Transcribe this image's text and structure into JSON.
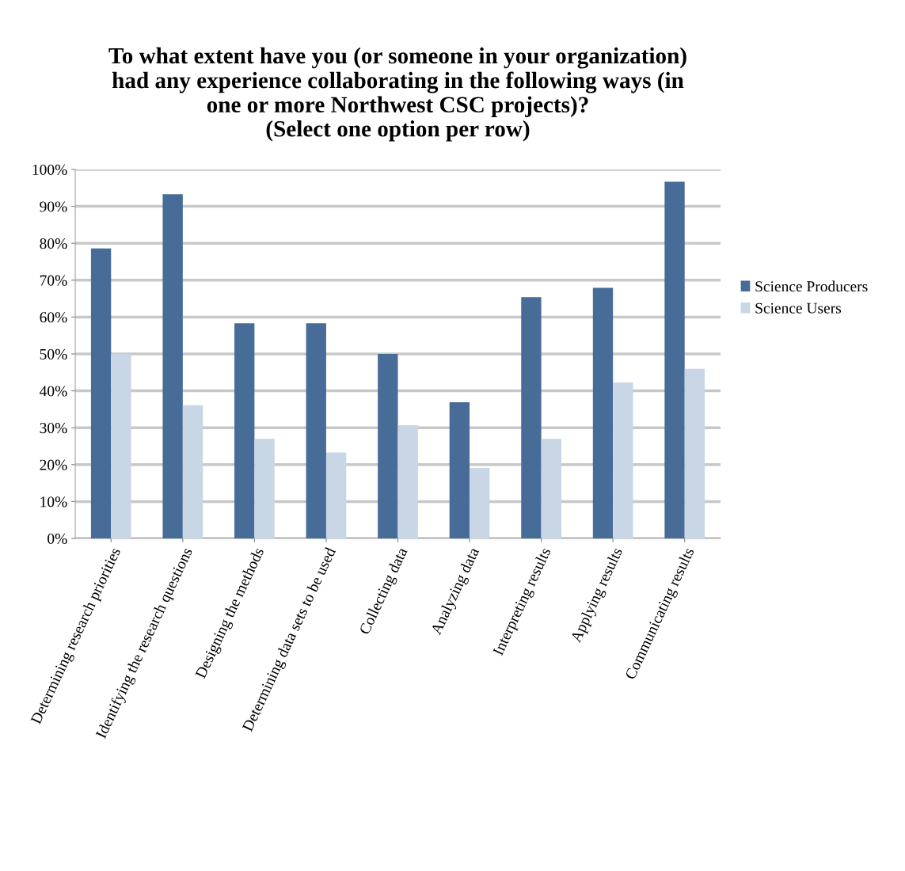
{
  "chart_data": {
    "type": "bar",
    "title": "To what extent have you (or someone in your organization)\nhad any experience collaborating in the following ways (in\none or more Northwest CSC projects)?\n(Select one option per row)",
    "categories": [
      "Determining research priorities",
      "Identifying the research questions",
      "Designing the methods",
      "Determining data sets to be used",
      "Collecting data",
      "Analyzing data",
      "Interpreting results",
      "Applying results",
      "Communicating results"
    ],
    "series": [
      {
        "name": "Science Producers",
        "color": "#476c98",
        "values": [
          78.6,
          93.3,
          58.3,
          58.3,
          50.0,
          36.9,
          65.4,
          67.9,
          96.7
        ]
      },
      {
        "name": "Science Users",
        "color": "#c9d6e6",
        "values": [
          50.0,
          36.1,
          27.0,
          23.3,
          30.7,
          19.1,
          27.0,
          42.3,
          46.0
        ]
      }
    ],
    "ylim": [
      0,
      100
    ],
    "yticks": [
      {
        "value": 0,
        "label": "0%"
      },
      {
        "value": 10,
        "label": "10%"
      },
      {
        "value": 20,
        "label": "20%"
      },
      {
        "value": 30,
        "label": "30%"
      },
      {
        "value": 40,
        "label": "40%"
      },
      {
        "value": 50,
        "label": "50%"
      },
      {
        "value": 60,
        "label": "60%"
      },
      {
        "value": 70,
        "label": "70%"
      },
      {
        "value": 80,
        "label": "80%"
      },
      {
        "value": 90,
        "label": "90%"
      },
      {
        "value": 100,
        "label": "100%"
      }
    ],
    "grid": "y",
    "legend": "right"
  }
}
